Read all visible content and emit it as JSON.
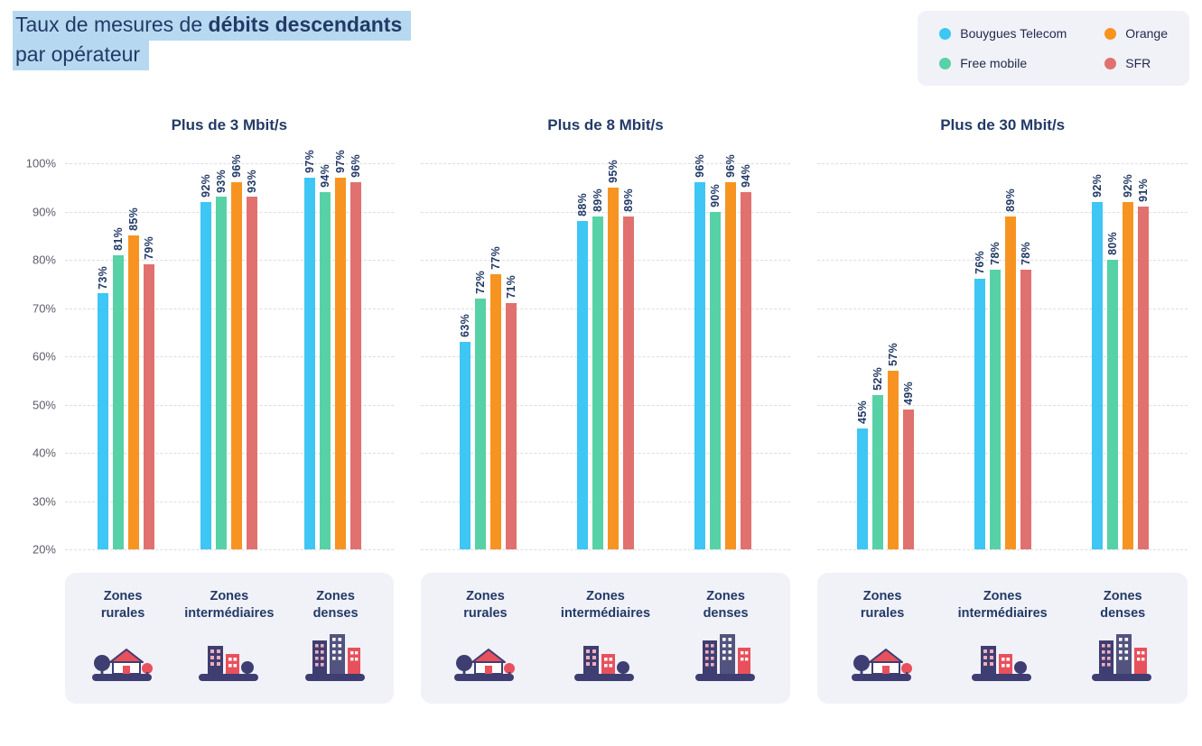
{
  "title": {
    "line1_regular": "Taux de mesures de ",
    "line1_bold": "débits descendants",
    "line2": "par opérateur"
  },
  "colors": {
    "text_navy": "#223A66",
    "title_highlight": "#B6D9F1",
    "panel_background": "#F1F1F8",
    "gridline": "#DCDCE6",
    "axis_label": "#5C5C6B"
  },
  "legend": {
    "items": [
      {
        "label": "Bouygues Telecom",
        "color": "#3EC6F4"
      },
      {
        "label": "Orange",
        "color": "#F79421"
      },
      {
        "label": "Free mobile",
        "color": "#57D1A6"
      },
      {
        "label": "SFR",
        "color": "#E0716E"
      }
    ]
  },
  "zones": [
    {
      "line1": "Zones",
      "line2": "rurales",
      "icon": "rural-icon"
    },
    {
      "line1": "Zones",
      "line2": "intermédiaires",
      "icon": "intermediate-icon"
    },
    {
      "line1": "Zones",
      "line2": "denses",
      "icon": "dense-icon"
    }
  ],
  "chart_data": [
    {
      "type": "bar",
      "title": "Plus de 3 Mbit/s",
      "categories": [
        "Zones rurales",
        "Zones intermédiaires",
        "Zones denses"
      ],
      "series": [
        {
          "name": "Bouygues Telecom",
          "values": [
            73,
            92,
            97
          ]
        },
        {
          "name": "Free mobile",
          "values": [
            81,
            93,
            94
          ]
        },
        {
          "name": "Orange",
          "values": [
            85,
            96,
            97
          ]
        },
        {
          "name": "SFR",
          "values": [
            79,
            93,
            96
          ]
        }
      ],
      "unit": "%",
      "ylim": [
        20,
        100
      ],
      "yticks": [
        "100%",
        "90%",
        "80%",
        "70%",
        "60%",
        "50%",
        "40%",
        "30%",
        "20%"
      ],
      "grid": "dashed-horizontal",
      "value_labels": "rotated-90",
      "legend_position": "top-right"
    },
    {
      "type": "bar",
      "title": "Plus de 8 Mbit/s",
      "categories": [
        "Zones rurales",
        "Zones intermédiaires",
        "Zones denses"
      ],
      "series": [
        {
          "name": "Bouygues Telecom",
          "values": [
            63,
            88,
            96
          ]
        },
        {
          "name": "Free mobile",
          "values": [
            72,
            89,
            90
          ]
        },
        {
          "name": "Orange",
          "values": [
            77,
            95,
            96
          ]
        },
        {
          "name": "SFR",
          "values": [
            71,
            89,
            94
          ]
        }
      ],
      "unit": "%",
      "ylim": [
        20,
        100
      ],
      "yticks": [
        "100%",
        "90%",
        "80%",
        "70%",
        "60%",
        "50%",
        "40%",
        "30%",
        "20%"
      ],
      "grid": "dashed-horizontal",
      "value_labels": "rotated-90",
      "legend_position": "top-right"
    },
    {
      "type": "bar",
      "title": "Plus de 30 Mbit/s",
      "categories": [
        "Zones rurales",
        "Zones intermédiaires",
        "Zones denses"
      ],
      "series": [
        {
          "name": "Bouygues Telecom",
          "values": [
            45,
            76,
            92
          ]
        },
        {
          "name": "Free mobile",
          "values": [
            52,
            78,
            80
          ]
        },
        {
          "name": "Orange",
          "values": [
            57,
            89,
            92
          ]
        },
        {
          "name": "SFR",
          "values": [
            49,
            78,
            91
          ]
        }
      ],
      "unit": "%",
      "ylim": [
        20,
        100
      ],
      "yticks": [
        "100%",
        "90%",
        "80%",
        "70%",
        "60%",
        "50%",
        "40%",
        "30%",
        "20%"
      ],
      "grid": "dashed-horizontal",
      "value_labels": "rotated-90",
      "legend_position": "top-right"
    }
  ]
}
